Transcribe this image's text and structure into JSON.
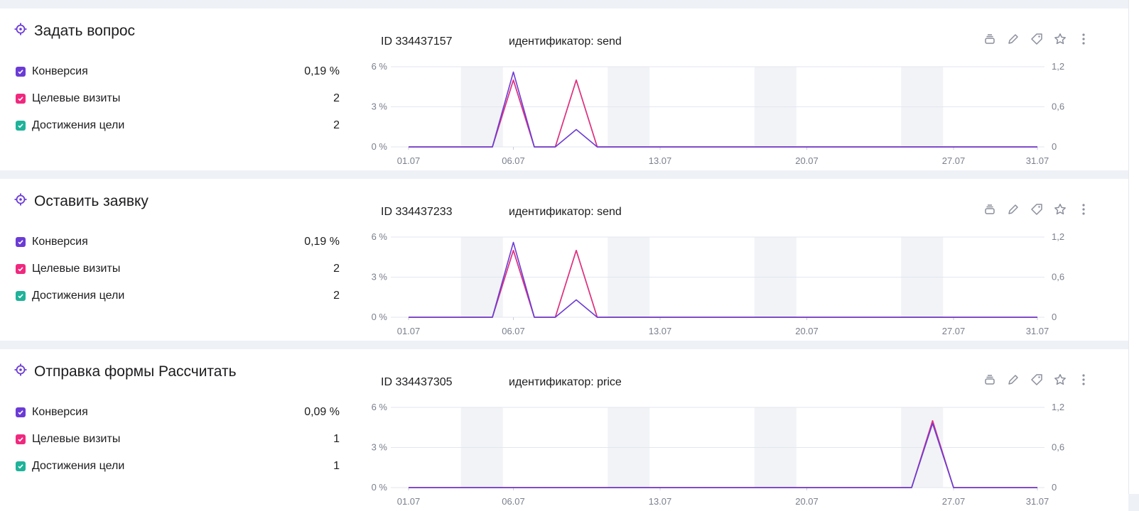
{
  "colors": {
    "conversion": "#6b3bd6",
    "visits": "#f0297e",
    "achievements": "#1fb39a",
    "weekend": "#f1f3f7",
    "grid": "#e3e6ec",
    "icon": "#8b8f9c",
    "target_icon": "#6b3bd6"
  },
  "icons": {
    "goal": "target-icon",
    "actions": [
      "stack-icon",
      "pencil-icon",
      "tag-icon",
      "star-icon",
      "more-vertical-icon"
    ]
  },
  "goals": [
    {
      "title": "Задать вопрос",
      "id_text": "ID 334437157",
      "identifier": "идентификатор: send",
      "metrics": [
        {
          "label": "Конверсия",
          "value": "0,19 %",
          "color": "#6b3bd6"
        },
        {
          "label": "Целевые визиты",
          "value": "2",
          "color": "#f0297e"
        },
        {
          "label": "Достижения цели",
          "value": "2",
          "color": "#1fb39a"
        }
      ]
    },
    {
      "title": "Оставить заявку",
      "id_text": "ID 334437233",
      "identifier": "идентификатор: send",
      "metrics": [
        {
          "label": "Конверсия",
          "value": "0,19 %",
          "color": "#6b3bd6"
        },
        {
          "label": "Целевые визиты",
          "value": "2",
          "color": "#f0297e"
        },
        {
          "label": "Достижения цели",
          "value": "2",
          "color": "#1fb39a"
        }
      ]
    },
    {
      "title": "Отправка формы Рассчитать",
      "id_text": "ID 334437305",
      "identifier": "идентификатор: price",
      "metrics": [
        {
          "label": "Конверсия",
          "value": "0,09 %",
          "color": "#6b3bd6"
        },
        {
          "label": "Целевые визиты",
          "value": "1",
          "color": "#f0297e"
        },
        {
          "label": "Достижения цели",
          "value": "1",
          "color": "#1fb39a"
        }
      ]
    }
  ],
  "chart_data": [
    {
      "type": "line",
      "x": [
        "01.07",
        "02.07",
        "03.07",
        "04.07",
        "05.07",
        "06.07",
        "07.07",
        "08.07",
        "09.07",
        "10.07",
        "11.07",
        "12.07",
        "13.07",
        "14.07",
        "15.07",
        "16.07",
        "17.07",
        "18.07",
        "19.07",
        "20.07",
        "21.07",
        "22.07",
        "23.07",
        "24.07",
        "25.07",
        "26.07",
        "27.07",
        "28.07",
        "29.07",
        "30.07",
        "31.07"
      ],
      "x_tick_labels": [
        "01.07",
        "06.07",
        "13.07",
        "20.07",
        "27.07",
        "31.07"
      ],
      "y_left_ticks": [
        "0 %",
        "3 %",
        "6 %"
      ],
      "y_right_ticks": [
        "0",
        "0,6",
        "1,2"
      ],
      "ylim_left": [
        0,
        6
      ],
      "ylim_right": [
        0,
        1.2
      ],
      "weekend_bands": [
        [
          "04.07",
          "05.07"
        ],
        [
          "11.07",
          "12.07"
        ],
        [
          "18.07",
          "19.07"
        ],
        [
          "25.07",
          "26.07"
        ]
      ],
      "series": [
        {
          "axis": "left",
          "color": "#6b3bd6",
          "values": [
            0,
            0,
            0,
            0,
            0,
            5.6,
            0,
            0,
            1.3,
            0,
            0,
            0,
            0,
            0,
            0,
            0,
            0,
            0,
            0,
            0,
            0,
            0,
            0,
            0,
            0,
            0,
            0,
            0,
            0,
            0,
            0
          ]
        },
        {
          "axis": "right",
          "color": "#f0297e",
          "values": [
            0,
            0,
            0,
            0,
            0,
            1,
            0,
            0,
            1,
            0,
            0,
            0,
            0,
            0,
            0,
            0,
            0,
            0,
            0,
            0,
            0,
            0,
            0,
            0,
            0,
            0,
            0,
            0,
            0,
            0,
            0
          ]
        },
        {
          "axis": "right",
          "color": "#1fb39a",
          "values": [
            0,
            0,
            0,
            0,
            0,
            1,
            0,
            0,
            1,
            0,
            0,
            0,
            0,
            0,
            0,
            0,
            0,
            0,
            0,
            0,
            0,
            0,
            0,
            0,
            0,
            0,
            0,
            0,
            0,
            0,
            0
          ]
        }
      ]
    },
    {
      "type": "line",
      "x": [
        "01.07",
        "02.07",
        "03.07",
        "04.07",
        "05.07",
        "06.07",
        "07.07",
        "08.07",
        "09.07",
        "10.07",
        "11.07",
        "12.07",
        "13.07",
        "14.07",
        "15.07",
        "16.07",
        "17.07",
        "18.07",
        "19.07",
        "20.07",
        "21.07",
        "22.07",
        "23.07",
        "24.07",
        "25.07",
        "26.07",
        "27.07",
        "28.07",
        "29.07",
        "30.07",
        "31.07"
      ],
      "x_tick_labels": [
        "01.07",
        "06.07",
        "13.07",
        "20.07",
        "27.07",
        "31.07"
      ],
      "y_left_ticks": [
        "0 %",
        "3 %",
        "6 %"
      ],
      "y_right_ticks": [
        "0",
        "0,6",
        "1,2"
      ],
      "ylim_left": [
        0,
        6
      ],
      "ylim_right": [
        0,
        1.2
      ],
      "weekend_bands": [
        [
          "04.07",
          "05.07"
        ],
        [
          "11.07",
          "12.07"
        ],
        [
          "18.07",
          "19.07"
        ],
        [
          "25.07",
          "26.07"
        ]
      ],
      "series": [
        {
          "axis": "left",
          "color": "#6b3bd6",
          "values": [
            0,
            0,
            0,
            0,
            0,
            5.6,
            0,
            0,
            1.3,
            0,
            0,
            0,
            0,
            0,
            0,
            0,
            0,
            0,
            0,
            0,
            0,
            0,
            0,
            0,
            0,
            0,
            0,
            0,
            0,
            0,
            0
          ]
        },
        {
          "axis": "right",
          "color": "#f0297e",
          "values": [
            0,
            0,
            0,
            0,
            0,
            1,
            0,
            0,
            1,
            0,
            0,
            0,
            0,
            0,
            0,
            0,
            0,
            0,
            0,
            0,
            0,
            0,
            0,
            0,
            0,
            0,
            0,
            0,
            0,
            0,
            0
          ]
        },
        {
          "axis": "right",
          "color": "#1fb39a",
          "values": [
            0,
            0,
            0,
            0,
            0,
            1,
            0,
            0,
            1,
            0,
            0,
            0,
            0,
            0,
            0,
            0,
            0,
            0,
            0,
            0,
            0,
            0,
            0,
            0,
            0,
            0,
            0,
            0,
            0,
            0,
            0
          ]
        }
      ]
    },
    {
      "type": "line",
      "x": [
        "01.07",
        "02.07",
        "03.07",
        "04.07",
        "05.07",
        "06.07",
        "07.07",
        "08.07",
        "09.07",
        "10.07",
        "11.07",
        "12.07",
        "13.07",
        "14.07",
        "15.07",
        "16.07",
        "17.07",
        "18.07",
        "19.07",
        "20.07",
        "21.07",
        "22.07",
        "23.07",
        "24.07",
        "25.07",
        "26.07",
        "27.07",
        "28.07",
        "29.07",
        "30.07",
        "31.07"
      ],
      "x_tick_labels": [
        "01.07",
        "06.07",
        "13.07",
        "20.07",
        "27.07",
        "31.07"
      ],
      "y_left_ticks": [
        "0 %",
        "3 %",
        "6 %"
      ],
      "y_right_ticks": [
        "0",
        "0,6",
        "1,2"
      ],
      "ylim_left": [
        0,
        6
      ],
      "ylim_right": [
        0,
        1.2
      ],
      "weekend_bands": [
        [
          "04.07",
          "05.07"
        ],
        [
          "11.07",
          "12.07"
        ],
        [
          "18.07",
          "19.07"
        ],
        [
          "25.07",
          "26.07"
        ]
      ],
      "series": [
        {
          "axis": "left",
          "color": "#6b3bd6",
          "values": [
            0,
            0,
            0,
            0,
            0,
            0,
            0,
            0,
            0,
            0,
            0,
            0,
            0,
            0,
            0,
            0,
            0,
            0,
            0,
            0,
            0,
            0,
            0,
            0,
            0,
            4.8,
            0,
            0,
            0,
            0,
            0
          ]
        },
        {
          "axis": "right",
          "color": "#f0297e",
          "values": [
            0,
            0,
            0,
            0,
            0,
            0,
            0,
            0,
            0,
            0,
            0,
            0,
            0,
            0,
            0,
            0,
            0,
            0,
            0,
            0,
            0,
            0,
            0,
            0,
            0,
            1,
            0,
            0,
            0,
            0,
            0
          ]
        },
        {
          "axis": "right",
          "color": "#1fb39a",
          "values": [
            0,
            0,
            0,
            0,
            0,
            0,
            0,
            0,
            0,
            0,
            0,
            0,
            0,
            0,
            0,
            0,
            0,
            0,
            0,
            0,
            0,
            0,
            0,
            0,
            0,
            1,
            0,
            0,
            0,
            0,
            0
          ]
        }
      ]
    }
  ]
}
